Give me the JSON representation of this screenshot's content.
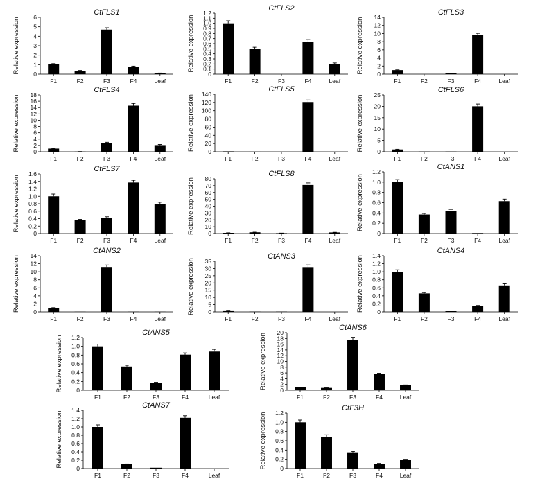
{
  "chart_data": [
    {
      "type": "bar",
      "title": "CtFLS1",
      "ylabel": "Relative expression",
      "categories": [
        "F1",
        "F2",
        "F3",
        "F4",
        "Leaf"
      ],
      "values": [
        1.05,
        0.35,
        4.7,
        0.8,
        0.1
      ],
      "errors": [
        0.06,
        0.04,
        0.2,
        0.05,
        0.02
      ],
      "ylim": [
        0,
        6
      ],
      "yticks": [
        "0",
        "1",
        "2",
        "3",
        "4",
        "5",
        "6"
      ]
    },
    {
      "type": "bar",
      "title": "CtFLS2",
      "ylabel": "Relative expression",
      "categories": [
        "F1",
        "F2",
        "F3",
        "F4",
        "Leaf"
      ],
      "values": [
        1.0,
        0.5,
        0.0,
        0.64,
        0.2
      ],
      "errors": [
        0.05,
        0.03,
        0.0,
        0.04,
        0.02
      ],
      "ylim": [
        0,
        1.2
      ],
      "yticks": [
        "0",
        "0.1",
        "0.2",
        "0.3",
        "0.4",
        "0.5",
        "0.6",
        "0.7",
        "0.8",
        "0.9",
        "1.0",
        "1.1",
        "1.2"
      ]
    },
    {
      "type": "bar",
      "title": "CtFLS3",
      "ylabel": "Relative expression",
      "categories": [
        "F1",
        "F2",
        "F3",
        "F4",
        "Leaf"
      ],
      "values": [
        1.0,
        0.0,
        0.2,
        9.6,
        0.0
      ],
      "errors": [
        0.06,
        0.0,
        0.03,
        0.45,
        0.0
      ],
      "ylim": [
        0,
        14
      ],
      "yticks": [
        "0",
        "2",
        "4",
        "6",
        "8",
        "10",
        "12",
        "14"
      ]
    },
    {
      "type": "bar",
      "title": "CtFLS4",
      "ylabel": "Relative expression",
      "categories": [
        "F1",
        "F2",
        "F3",
        "F4",
        "Leaf"
      ],
      "values": [
        1.0,
        0.05,
        2.8,
        14.6,
        2.1
      ],
      "errors": [
        0.1,
        0.02,
        0.2,
        0.7,
        0.2
      ],
      "ylim": [
        0,
        18
      ],
      "yticks": [
        "0",
        "2",
        "4",
        "6",
        "8",
        "10",
        "12",
        "14",
        "16",
        "18"
      ]
    },
    {
      "type": "bar",
      "title": "CtFLS5",
      "ylabel": "Relative expression",
      "categories": [
        "F1",
        "F2",
        "F3",
        "F4",
        "Leaf"
      ],
      "values": [
        1.0,
        0.1,
        0.0,
        121,
        0.0
      ],
      "errors": [
        0.0,
        0.0,
        0.0,
        5,
        0.0
      ],
      "ylim": [
        0,
        140
      ],
      "yticks": [
        "0",
        "20",
        "40",
        "60",
        "80",
        "100",
        "120",
        "140"
      ]
    },
    {
      "type": "bar",
      "title": "CtFLS6",
      "ylabel": "Relative expression",
      "categories": [
        "F1",
        "F2",
        "F3",
        "F4",
        "Leaf"
      ],
      "values": [
        1.0,
        0.1,
        0.1,
        20,
        0.0
      ],
      "errors": [
        0.1,
        0.0,
        0.0,
        1.0,
        0.0
      ],
      "ylim": [
        0,
        25
      ],
      "yticks": [
        "0",
        "5",
        "10",
        "15",
        "20",
        "25"
      ]
    },
    {
      "type": "bar",
      "title": "CtFLS7",
      "ylabel": "Relative expression",
      "categories": [
        "F1",
        "F2",
        "F3",
        "F4",
        "Leaf"
      ],
      "values": [
        1.0,
        0.36,
        0.42,
        1.37,
        0.8
      ],
      "errors": [
        0.06,
        0.02,
        0.03,
        0.06,
        0.04
      ],
      "ylim": [
        0,
        1.6
      ],
      "yticks": [
        "0",
        "0.2",
        "0.4",
        "0.6",
        "0.8",
        "1.0",
        "1.2",
        "1.4",
        "1.6"
      ]
    },
    {
      "type": "bar",
      "title": "CtFLS8",
      "ylabel": "Relative expression",
      "categories": [
        "F1",
        "F2",
        "F3",
        "F4",
        "Leaf"
      ],
      "values": [
        1.0,
        1.8,
        0.6,
        71,
        1.6
      ],
      "errors": [
        0.1,
        0.2,
        0.1,
        3,
        0.2
      ],
      "ylim": [
        0,
        80
      ],
      "yticks": [
        "0",
        "10",
        "20",
        "30",
        "40",
        "50",
        "60",
        "70",
        "80"
      ]
    },
    {
      "type": "bar",
      "title": "CtANS1",
      "ylabel": "Relative expression",
      "categories": [
        "F1",
        "F2",
        "F3",
        "F4",
        "Leaf"
      ],
      "values": [
        1.0,
        0.37,
        0.44,
        0.01,
        0.63
      ],
      "errors": [
        0.05,
        0.02,
        0.03,
        0.0,
        0.04
      ],
      "ylim": [
        0,
        1.2
      ],
      "yticks": [
        "0",
        "0.2",
        "0.4",
        "0.6",
        "0.8",
        "1.0",
        "1.2"
      ]
    },
    {
      "type": "bar",
      "title": "CtANS2",
      "ylabel": "Relative expression",
      "categories": [
        "F1",
        "F2",
        "F3",
        "F4",
        "Leaf"
      ],
      "values": [
        1.0,
        0.05,
        11.2,
        0.05,
        0.05
      ],
      "errors": [
        0.06,
        0.0,
        0.5,
        0.0,
        0.0
      ],
      "ylim": [
        0,
        14
      ],
      "yticks": [
        "0",
        "2",
        "4",
        "6",
        "8",
        "10",
        "12",
        "14"
      ]
    },
    {
      "type": "bar",
      "title": "CtANS3",
      "ylabel": "Relative expression",
      "categories": [
        "F1",
        "F2",
        "F3",
        "F4",
        "Leaf"
      ],
      "values": [
        1.0,
        0.2,
        0.2,
        31,
        0.0
      ],
      "errors": [
        0.1,
        0.0,
        0.0,
        1.5,
        0.0
      ],
      "ylim": [
        0,
        35
      ],
      "yticks": [
        "0",
        "5",
        "10",
        "15",
        "20",
        "25",
        "30",
        "35"
      ]
    },
    {
      "type": "bar",
      "title": "CtANS4",
      "ylabel": "Relative expression",
      "categories": [
        "F1",
        "F2",
        "F3",
        "F4",
        "Leaf"
      ],
      "values": [
        1.0,
        0.46,
        0.02,
        0.14,
        0.66
      ],
      "errors": [
        0.05,
        0.02,
        0.0,
        0.02,
        0.04
      ],
      "ylim": [
        0,
        1.4
      ],
      "yticks": [
        "0",
        "0.2",
        "0.4",
        "0.6",
        "0.8",
        "1.0",
        "1.2",
        "1.4"
      ]
    },
    {
      "type": "bar",
      "title": "CtANS5",
      "ylabel": "Relative expression",
      "categories": [
        "F1",
        "F2",
        "F3",
        "F4",
        "Leaf"
      ],
      "values": [
        1.0,
        0.54,
        0.17,
        0.81,
        0.88
      ],
      "errors": [
        0.05,
        0.03,
        0.01,
        0.04,
        0.05
      ],
      "ylim": [
        0,
        1.2
      ],
      "yticks": [
        "0",
        "0.2",
        "0.4",
        "0.6",
        "0.8",
        "1.0",
        "1.2"
      ]
    },
    {
      "type": "bar",
      "title": "CtANS6",
      "ylabel": "Relative expression",
      "categories": [
        "F1",
        "F2",
        "F3",
        "F4",
        "Leaf"
      ],
      "values": [
        1.0,
        0.8,
        17.5,
        5.6,
        1.7
      ],
      "errors": [
        0.1,
        0.1,
        0.9,
        0.3,
        0.15
      ],
      "ylim": [
        0,
        20
      ],
      "yticks": [
        "0",
        "2",
        "4",
        "6",
        "8",
        "10",
        "12",
        "14",
        "16",
        "18",
        "20"
      ]
    },
    {
      "type": "bar",
      "title": "CtANS7",
      "ylabel": "Relative expression",
      "categories": [
        "F1",
        "F2",
        "F3",
        "F4",
        "Leaf"
      ],
      "values": [
        1.0,
        0.1,
        0.02,
        1.22,
        0.0
      ],
      "errors": [
        0.05,
        0.01,
        0.0,
        0.05,
        0.0
      ],
      "ylim": [
        0,
        1.4
      ],
      "yticks": [
        "0",
        "0.2",
        "0.4",
        "0.6",
        "0.8",
        "1.0",
        "1.2",
        "1.4"
      ]
    },
    {
      "type": "bar",
      "title": "CtF3H",
      "ylabel": "Relative expression",
      "categories": [
        "F1",
        "F2",
        "F3",
        "F4",
        "Leaf"
      ],
      "values": [
        1.0,
        0.69,
        0.35,
        0.1,
        0.19
      ],
      "errors": [
        0.05,
        0.04,
        0.02,
        0.01,
        0.01
      ],
      "ylim": [
        0,
        1.2
      ],
      "yticks": [
        "0",
        "0.2",
        "0.4",
        "0.6",
        "0.8",
        "1.0",
        "1.2"
      ]
    }
  ],
  "colors": {
    "bar": "#000000",
    "axis": "#000000",
    "background": "#ffffff"
  }
}
